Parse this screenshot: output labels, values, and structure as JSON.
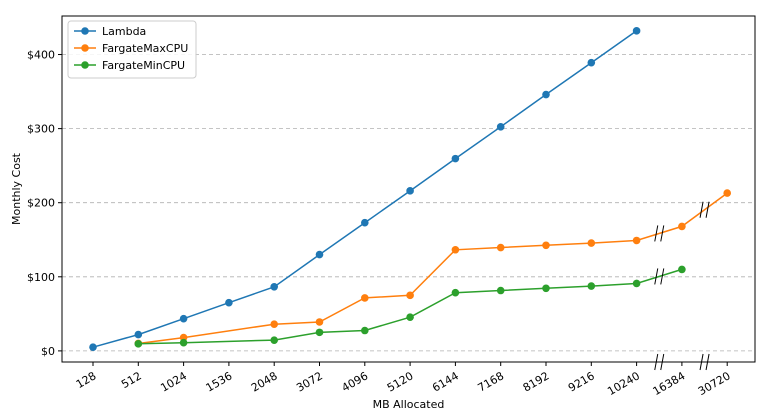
{
  "chart_data": {
    "type": "line",
    "xlabel": "MB Allocated",
    "ylabel": "Monthly Cost",
    "categories": [
      "128",
      "512",
      "1024",
      "1536",
      "2048",
      "3072",
      "4096",
      "5120",
      "6144",
      "7168",
      "8192",
      "9216",
      "10240",
      "16384",
      "30720"
    ],
    "ylim": [
      -15,
      452
    ],
    "yticks": [
      0,
      100,
      200,
      300,
      400
    ],
    "ytick_labels": [
      "$0",
      "$100",
      "$200",
      "$300",
      "$400"
    ],
    "grid": "horizontal-dashed",
    "legend_position": "top-left",
    "series": [
      {
        "name": "Lambda",
        "color": "#1f77b4",
        "values": [
          5,
          22,
          43.5,
          65,
          86.5,
          130,
          173,
          216,
          259.5,
          302.5,
          346,
          389,
          432,
          null,
          null
        ]
      },
      {
        "name": "FargateMaxCPU",
        "color": "#ff7f0e",
        "values": [
          null,
          10,
          18,
          null,
          36,
          39,
          71.5,
          75,
          136.5,
          139.5,
          142.5,
          145.5,
          149,
          168,
          213
        ]
      },
      {
        "name": "FargateMinCPU",
        "color": "#2ca02c",
        "values": [
          null,
          9.5,
          11,
          null,
          14.5,
          25,
          27.5,
          45.5,
          78.5,
          81.5,
          84.5,
          87.5,
          91,
          110,
          null
        ]
      }
    ]
  }
}
